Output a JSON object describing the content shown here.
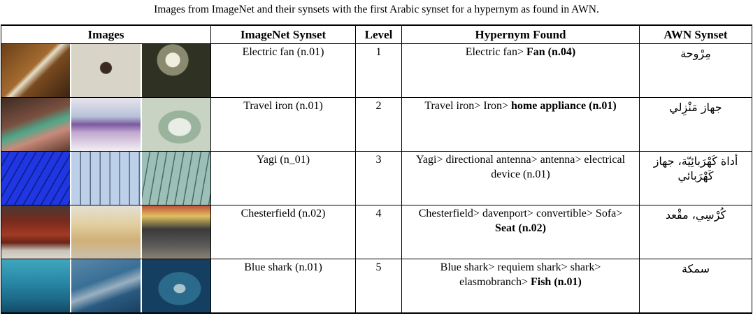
{
  "caption": "Images from ImageNet and their synsets with the first Arabic synset for a hypernym as found in AWN.",
  "table": {
    "headers": [
      "Images",
      "ImageNet Synset",
      "Level",
      "Hypernym Found",
      "AWN Synset"
    ],
    "rows": [
      {
        "synset": "Electric fan (n.01)",
        "level": "1",
        "hypernym_plain": "Electric fan> ",
        "hypernym_bold": "Fan (n.04)",
        "awn": "مِرْوحة",
        "images": [
          "electric-fan-photo-1",
          "electric-fan-photo-2",
          "electric-fan-photo-3"
        ],
        "image_colors": [
          "#8a5a2a",
          "#d9d4c8",
          "#3b3a2a"
        ]
      },
      {
        "synset": "Travel iron (n.01)",
        "level": "2",
        "hypernym_plain": "Travel iron> Iron> ",
        "hypernym_bold": "home appliance (n.01)",
        "awn": "جهاز مَنْزِلي",
        "images": [
          "travel-iron-photo-1",
          "travel-iron-photo-2",
          "travel-iron-photo-3"
        ],
        "image_colors": [
          "#6b4a3a",
          "#c9c0d6",
          "#b9c7b3"
        ]
      },
      {
        "synset": "Yagi (n_01)",
        "level": "3",
        "hypernym_plain": "Yagi> directional antenna> antenna> electrical device (n.01)",
        "hypernym_bold": "",
        "awn": "أداة كَهْرَبائِيّة، جهاز كَهْرَبائي",
        "images": [
          "yagi-antenna-photo-1",
          "yagi-antenna-photo-2",
          "yagi-antenna-photo-3"
        ],
        "image_colors": [
          "#1a2fd0",
          "#a9c0e0",
          "#8fb0a8"
        ]
      },
      {
        "synset": "Chesterfield (n.02)",
        "level": "4",
        "hypernym_plain": "Chesterfield> davenport> convertible> Sofa> ",
        "hypernym_bold": "Seat (n.02)",
        "awn": "كُرْسِي، مقْعد",
        "images": [
          "chesterfield-photo-1",
          "chesterfield-photo-2",
          "chesterfield-photo-3"
        ],
        "image_colors": [
          "#6a2a1e",
          "#d8c59a",
          "#5a5a5a"
        ]
      },
      {
        "synset": "Blue shark (n.01)",
        "level": "5",
        "hypernym_plain": "Blue shark> requiem shark> shark> elasmobranch> ",
        "hypernym_bold": "Fish (n.01)",
        "awn": "سمكة",
        "images": [
          "blue-shark-photo-1",
          "blue-shark-photo-2",
          "blue-shark-photo-3"
        ],
        "image_colors": [
          "#2e8aa6",
          "#3a6f96",
          "#1f4d70"
        ]
      }
    ]
  }
}
